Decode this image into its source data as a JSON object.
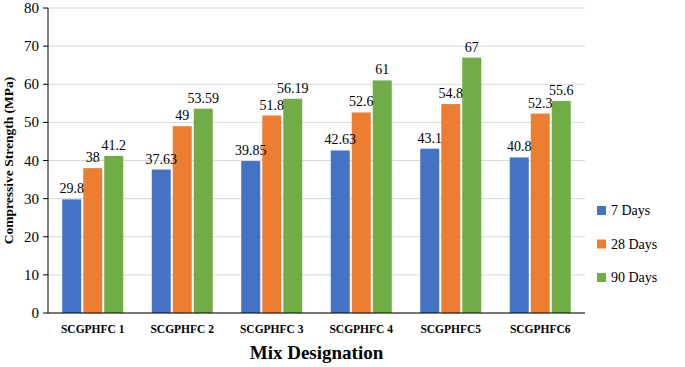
{
  "chart_data": {
    "type": "bar",
    "x_label": "Mix Designation",
    "y_label": "Compressive Strength (MPa)",
    "categories": [
      "SCGPHFC 1",
      "SCGPHFC 2",
      "SCGPHFC 3",
      "SCGPHFC 4",
      "SCGPHFC5",
      "SCGPHFC6"
    ],
    "series": [
      {
        "name": "7 Days",
        "color": "#4472c4",
        "values": [
          29.8,
          37.63,
          39.85,
          42.63,
          43.1,
          40.8
        ]
      },
      {
        "name": "28 Days",
        "color": "#ed7d31",
        "values": [
          38,
          49,
          51.8,
          52.6,
          54.8,
          52.3
        ]
      },
      {
        "name": "90 Days",
        "color": "#70ad47",
        "values": [
          41.2,
          53.59,
          56.19,
          61,
          67,
          55.6
        ]
      }
    ],
    "ylim": [
      0,
      80
    ],
    "yticks": [
      0,
      10,
      20,
      30,
      40,
      50,
      60,
      70,
      80
    ],
    "grid": true,
    "legend": "right",
    "data_labels": true
  }
}
